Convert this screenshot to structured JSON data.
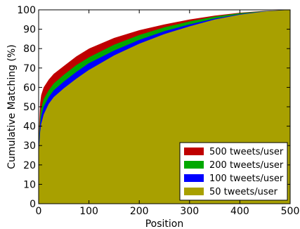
{
  "chart_data": {
    "type": "area",
    "xlabel": "Position",
    "ylabel": "Cumulative Matching (%)",
    "xlim": [
      0,
      500
    ],
    "ylim": [
      0,
      100
    ],
    "x_ticks": [
      0,
      100,
      200,
      300,
      400,
      500
    ],
    "y_ticks": [
      0,
      10,
      20,
      30,
      40,
      50,
      60,
      70,
      80,
      90,
      100
    ],
    "grid": false,
    "legend_position": "bottom-right",
    "x": [
      0,
      1,
      3,
      5,
      10,
      20,
      30,
      50,
      75,
      100,
      150,
      200,
      250,
      300,
      350,
      400,
      450,
      500
    ],
    "series": [
      {
        "name": "500 tweets/user",
        "color": "#bf0000",
        "values": [
          22,
          40,
          52,
          56,
          60,
          64,
          67,
          71,
          76,
          80,
          85.5,
          89.5,
          92.5,
          95,
          97,
          98.5,
          99.5,
          100
        ]
      },
      {
        "name": "200 tweets/user",
        "color": "#00a800",
        "values": [
          22,
          36,
          45,
          49,
          54,
          58.5,
          62,
          66.5,
          71.5,
          75.5,
          82,
          87,
          91,
          94,
          96.5,
          98.3,
          99.4,
          100
        ]
      },
      {
        "name": "100 tweets/user",
        "color": "#0000ff",
        "values": [
          22,
          33,
          41,
          45,
          50,
          55,
          58.5,
          63,
          68,
          72.5,
          79,
          84.5,
          89,
          92.5,
          95.5,
          97.8,
          99.3,
          100
        ]
      },
      {
        "name": "50 tweets/user",
        "color": "#a8a000",
        "values": [
          22,
          30,
          37,
          41,
          46,
          51.5,
          55,
          59.5,
          64.5,
          69,
          76.5,
          82.5,
          87.5,
          91.5,
          95,
          97.5,
          99.2,
          100
        ]
      }
    ]
  }
}
